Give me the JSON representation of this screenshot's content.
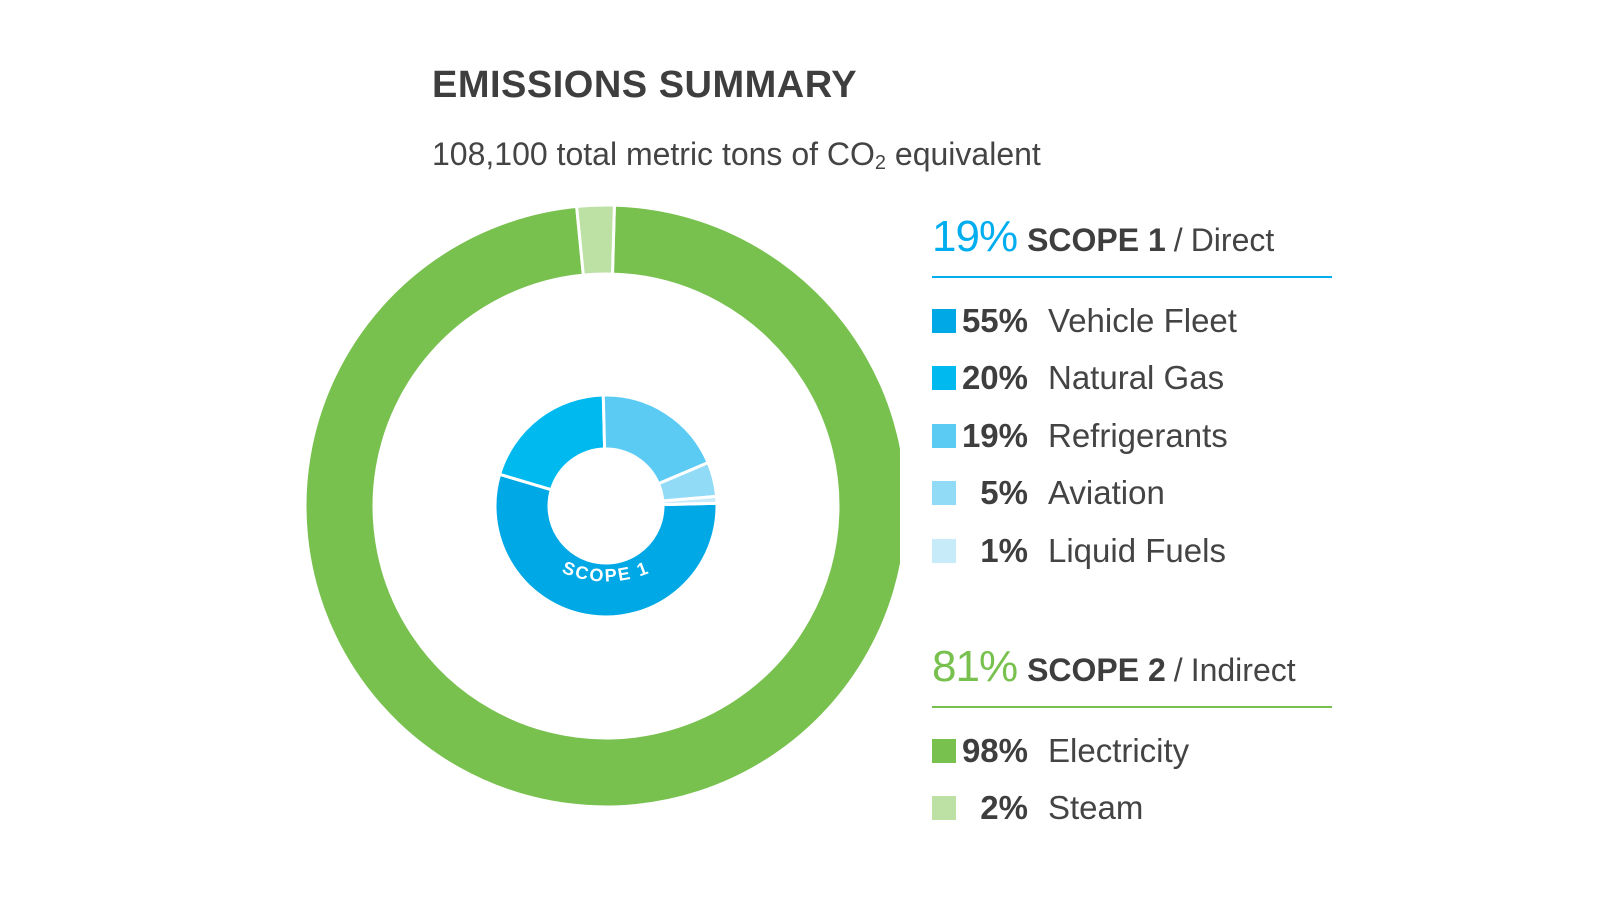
{
  "header": {
    "title": "EMISSIONS SUMMARY",
    "subtitle_main": "108,100 total metric tons of CO",
    "subtitle_sub": "2",
    "subtitle_end": " equivalent"
  },
  "chart_data": {
    "type": "pie",
    "title": "EMISSIONS SUMMARY",
    "subtitle": "108,100 total metric tons of CO2 equivalent",
    "rings": [
      {
        "label": "SCOPE 2",
        "share": "81%",
        "type": "Indirect",
        "slices": [
          {
            "label": "Electricity",
            "value": 98,
            "color": "#78c14f"
          },
          {
            "label": "Steam",
            "value": 2,
            "color": "#bde0a5"
          }
        ]
      },
      {
        "label": "SCOPE 1",
        "share": "19%",
        "type": "Direct",
        "slices": [
          {
            "label": "Vehicle Fleet",
            "value": 55,
            "color": "#00a9e6"
          },
          {
            "label": "Natural Gas",
            "value": 20,
            "color": "#00baef"
          },
          {
            "label": "Refrigerants",
            "value": 19,
            "color": "#5ccbf4"
          },
          {
            "label": "Aviation",
            "value": 5,
            "color": "#92dbf7"
          },
          {
            "label": "Liquid Fuels",
            "value": 1,
            "color": "#c8ebfa"
          }
        ]
      }
    ]
  },
  "legend": {
    "scope1": {
      "pct": "19%",
      "name": "SCOPE 1",
      "sep": "/",
      "type": "Direct",
      "color": "#00aeef",
      "items": [
        {
          "pct": "55%",
          "label": "Vehicle Fleet",
          "color": "#00a9e6"
        },
        {
          "pct": "20%",
          "label": "Natural Gas",
          "color": "#00baef"
        },
        {
          "pct": "19%",
          "label": "Refrigerants",
          "color": "#5ccbf4"
        },
        {
          "pct": "5%",
          "label": "Aviation",
          "color": "#92dbf7"
        },
        {
          "pct": "1%",
          "label": "Liquid Fuels",
          "color": "#c8ebfa"
        }
      ]
    },
    "scope2": {
      "pct": "81%",
      "name": "SCOPE 2",
      "sep": "/",
      "type": "Indirect",
      "color": "#78c14f",
      "items": [
        {
          "pct": "98%",
          "label": "Electricity",
          "color": "#78c14f"
        },
        {
          "pct": "2%",
          "label": "Steam",
          "color": "#bde0a5"
        }
      ]
    }
  }
}
